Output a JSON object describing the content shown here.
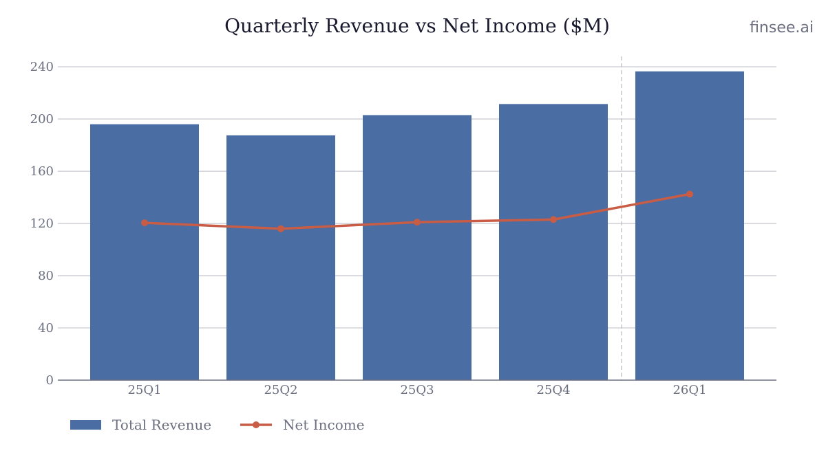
{
  "watermark": "finsee.ai",
  "colors": {
    "revenue": "#4a6da3",
    "net_income": "#c95c45",
    "grid": "#c7c9cf",
    "axis": "#6b6f80",
    "divider": "#c0c0c0"
  },
  "chart_data": {
    "type": "bar",
    "title": "Quarterly Revenue vs Net Income ($M)",
    "xlabel": "",
    "ylabel": "",
    "categories": [
      "25Q1",
      "25Q2",
      "25Q3",
      "25Q4",
      "26Q1"
    ],
    "ylim": [
      0,
      248
    ],
    "yticks": [
      0,
      40,
      80,
      120,
      160,
      200,
      240
    ],
    "grid": true,
    "legend": "bottom-left",
    "divider_after_category": "25Q4",
    "series": [
      {
        "name": "Total Revenue",
        "type": "bar",
        "values": [
          196,
          187.5,
          203,
          211.5,
          236.5
        ]
      },
      {
        "name": "Net Income",
        "type": "line",
        "values": [
          120.5,
          116,
          121,
          123,
          142.5
        ]
      }
    ]
  }
}
